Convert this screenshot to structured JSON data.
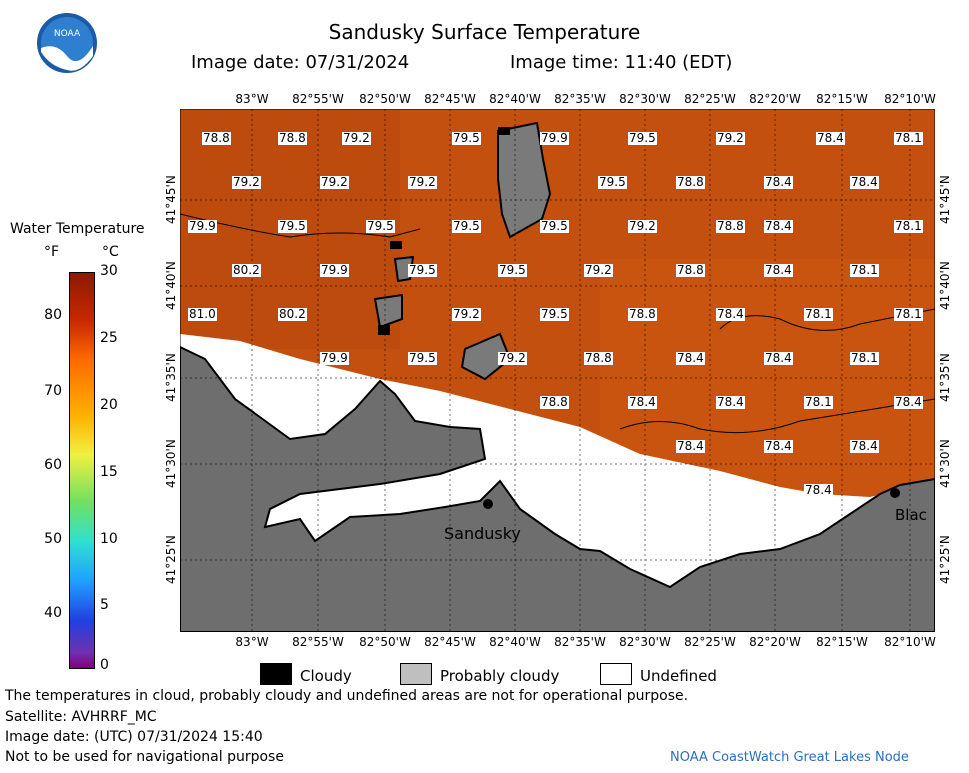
{
  "header": {
    "title": "Sandusky Surface Temperature",
    "image_date": "Image date: 07/31/2024",
    "image_time": "Image time: 11:40 (EDT)"
  },
  "colorbar": {
    "title": "Water Temperature",
    "unit_f": "°F",
    "unit_c": "°C",
    "f_ticks": [
      "80",
      "70",
      "60",
      "50",
      "40"
    ],
    "c_ticks": [
      "30",
      "25",
      "20",
      "15",
      "10",
      "5",
      "0"
    ]
  },
  "axes": {
    "lon_ticks": [
      "83°W",
      "82°55'W",
      "82°50'W",
      "82°45'W",
      "82°40'W",
      "82°35'W",
      "82°30'W",
      "82°25'W",
      "82°20'W",
      "82°15'W",
      "82°10'W"
    ],
    "lat_ticks": [
      "41°45'N",
      "41°40'N",
      "41°35'N",
      "41°30'N",
      "41°25'N"
    ]
  },
  "map": {
    "place_labels": [
      "Sandusky",
      "Blac"
    ],
    "water_color": "#c4500f",
    "land_color": "#6e6e6e",
    "undefined_color": "#ffffff",
    "temperature_labels": [
      "78.8",
      "78.8",
      "79.2",
      "79.5",
      "79.9",
      "79.5",
      "79.2",
      "78.4",
      "78.1",
      "79.2",
      "79.2",
      "79.2",
      "79.5",
      "78.8",
      "78.4",
      "78.4",
      "79.9",
      "79.5",
      "79.5",
      "79.5",
      "79.5",
      "79.2",
      "78.8",
      "78.4",
      "78.1",
      "80.2",
      "79.9",
      "79.5",
      "79.5",
      "79.2",
      "78.8",
      "78.4",
      "78.1",
      "81.0",
      "80.2",
      "79.2",
      "79.5",
      "78.8",
      "78.4",
      "78.1",
      "78.1",
      "79.9",
      "79.5",
      "79.2",
      "78.8",
      "78.4",
      "78.4",
      "78.1",
      "78.8",
      "78.4",
      "78.4",
      "78.1",
      "78.4",
      "78.4",
      "78.4",
      "78.4",
      "78.4"
    ]
  },
  "legend": {
    "cloudy": "Cloudy",
    "probably_cloudy": "Probably cloudy",
    "undefined": "Undefined"
  },
  "footer": {
    "line1": "The temperatures in cloud, probably cloudy and undefined areas are not for operational purpose.",
    "line2": "Satellite: AVHRRF_MC",
    "line3": "Image date: (UTC) 07/31/2024  15:40",
    "line4": "Not to be used for navigational purpose",
    "credit": "NOAA CoastWatch Great Lakes Node"
  }
}
